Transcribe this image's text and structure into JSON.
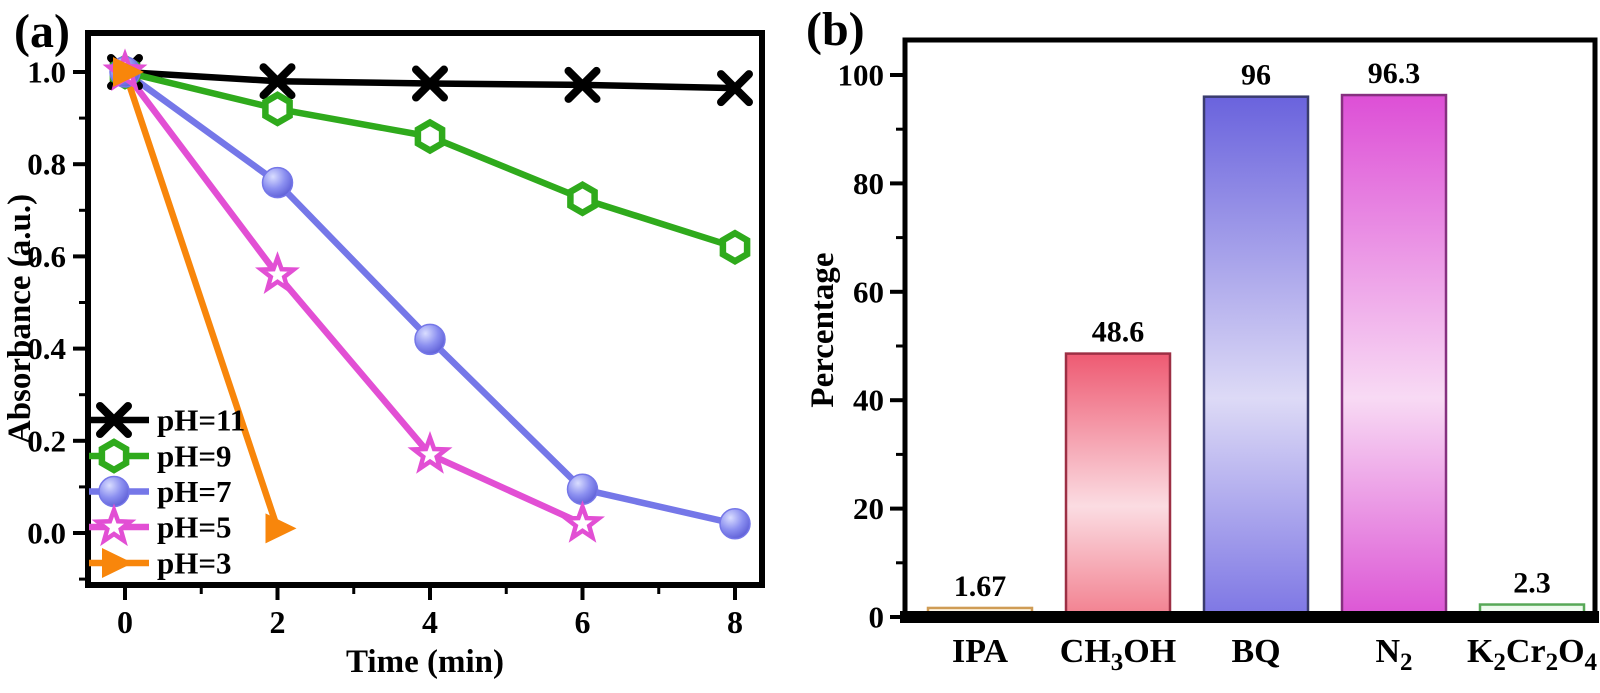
{
  "figure": {
    "panel_a_label": "(a)",
    "panel_b_label": "(b)"
  },
  "chart_data": [
    {
      "type": "line",
      "panel": "a",
      "xlabel": "Time (min)",
      "ylabel": "Absorbance (a.u.)",
      "xlim": [
        -0.5,
        8.4
      ],
      "ylim": [
        -0.11,
        1.09
      ],
      "x_major_ticks": [
        0,
        2,
        4,
        6,
        8
      ],
      "x_tick_labels": [
        "0",
        "2",
        "4",
        "6",
        "8"
      ],
      "x_minor_ticks": [
        1,
        3,
        5,
        7
      ],
      "y_major_ticks": [
        0.0,
        0.2,
        0.4,
        0.6,
        0.8,
        1.0
      ],
      "y_tick_labels": [
        "0.0",
        "0.2",
        "0.4",
        "0.6",
        "0.8",
        "1.0"
      ],
      "y_minor_ticks": [
        -0.1,
        0.1,
        0.3,
        0.5,
        0.7,
        0.9
      ],
      "grid": false,
      "legend_position": "lower-left",
      "series": [
        {
          "name": "pH=11",
          "color": "#000000",
          "marker": "x",
          "x": [
            0,
            2,
            4,
            6,
            8
          ],
          "y": [
            1.0,
            0.98,
            0.975,
            0.972,
            0.965
          ]
        },
        {
          "name": "pH=9",
          "color": "#2faa1c",
          "marker": "hexagon",
          "x": [
            0,
            2,
            4,
            6,
            8
          ],
          "y": [
            1.0,
            0.92,
            0.86,
            0.725,
            0.62
          ]
        },
        {
          "name": "pH=7",
          "color": "#7577e8",
          "marker": "sphere",
          "x": [
            0,
            2,
            4,
            6,
            8
          ],
          "y": [
            1.0,
            0.76,
            0.42,
            0.095,
            0.02
          ]
        },
        {
          "name": "pH=5",
          "color": "#e24fd4",
          "marker": "star",
          "x": [
            0,
            2,
            4,
            6
          ],
          "y": [
            1.0,
            0.56,
            0.17,
            0.02
          ]
        },
        {
          "name": "pH=3",
          "color": "#f8860b",
          "marker": "triangle-right",
          "x": [
            0,
            2
          ],
          "y": [
            1.0,
            0.01
          ]
        }
      ]
    },
    {
      "type": "bar",
      "panel": "b",
      "ylabel": "Percentage",
      "ylim": [
        0,
        106
      ],
      "y_major_ticks": [
        0,
        20,
        40,
        60,
        80,
        100
      ],
      "y_tick_labels": [
        "0",
        "20",
        "40",
        "60",
        "80",
        "100"
      ],
      "y_minor_ticks": [
        10,
        30,
        50,
        70,
        90
      ],
      "categories": [
        "IPA",
        "CH3OH",
        "BQ",
        "N2",
        "K2Cr2O4"
      ],
      "category_parts": [
        [
          {
            "t": "IPA"
          }
        ],
        [
          {
            "t": "CH"
          },
          {
            "t": "3",
            "sub": true
          },
          {
            "t": "OH"
          }
        ],
        [
          {
            "t": "BQ"
          }
        ],
        [
          {
            "t": "N"
          },
          {
            "t": "2",
            "sub": true
          }
        ],
        [
          {
            "t": "K"
          },
          {
            "t": "2",
            "sub": true
          },
          {
            "t": "Cr"
          },
          {
            "t": "2",
            "sub": true
          },
          {
            "t": "O"
          },
          {
            "t": "4",
            "sub": true
          }
        ]
      ],
      "values": [
        1.67,
        48.6,
        96,
        96.3,
        2.3
      ],
      "value_labels": [
        "1.67",
        "48.6",
        "96",
        "96.3",
        "2.3"
      ],
      "bar_styles": [
        {
          "border": "#cf9c55",
          "fill_top": "#fdf4e2",
          "fill_mid": "#fdf8ee",
          "fill_bottom": "#f8ecd4"
        },
        {
          "border": "#9c2f44",
          "fill_top": "#ee5a72",
          "fill_mid": "#fbdce2",
          "fill_bottom": "#f2808f"
        },
        {
          "border": "#3a3c6e",
          "fill_top": "#6a63dd",
          "fill_mid": "#dddaf6",
          "fill_bottom": "#7d76e4"
        },
        {
          "border": "#86307f",
          "fill_top": "#dd4fd6",
          "fill_mid": "#f8daf4",
          "fill_bottom": "#dc55d5"
        },
        {
          "border": "#57a857",
          "fill_top": "#e9f9e9",
          "fill_mid": "#f3fcf3",
          "fill_bottom": "#def4de"
        }
      ]
    }
  ]
}
